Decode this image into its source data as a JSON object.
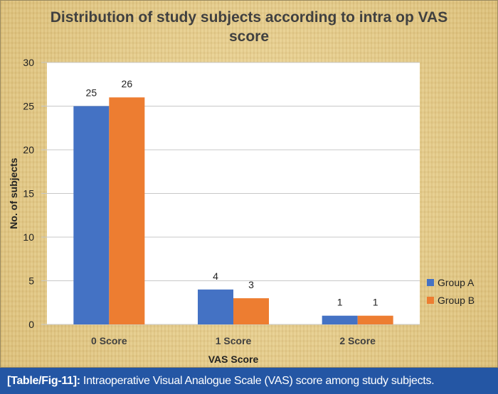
{
  "chart_data": {
    "type": "bar",
    "title": "Distribution of study subjects according to intra op VAS score",
    "title_lines": [
      "Distribution of study subjects according to intra op VAS",
      "score"
    ],
    "xlabel": "VAS Score",
    "ylabel": "No. of subjects",
    "categories": [
      "0 Score",
      "1 Score",
      "2 Score"
    ],
    "series": [
      {
        "name": "Group A",
        "color": "#4472c4",
        "values": [
          25,
          4,
          1
        ]
      },
      {
        "name": "Group B",
        "color": "#ed7d31",
        "values": [
          26,
          3,
          1
        ]
      }
    ],
    "ylim": [
      0,
      30
    ],
    "yticks": [
      0,
      5,
      10,
      15,
      20,
      25,
      30
    ],
    "grid": true,
    "legend": "right"
  },
  "caption": {
    "label": "[Table/Fig-11]:",
    "text": " Intraoperative Visual Analogue Scale (VAS) score among study subjects."
  }
}
